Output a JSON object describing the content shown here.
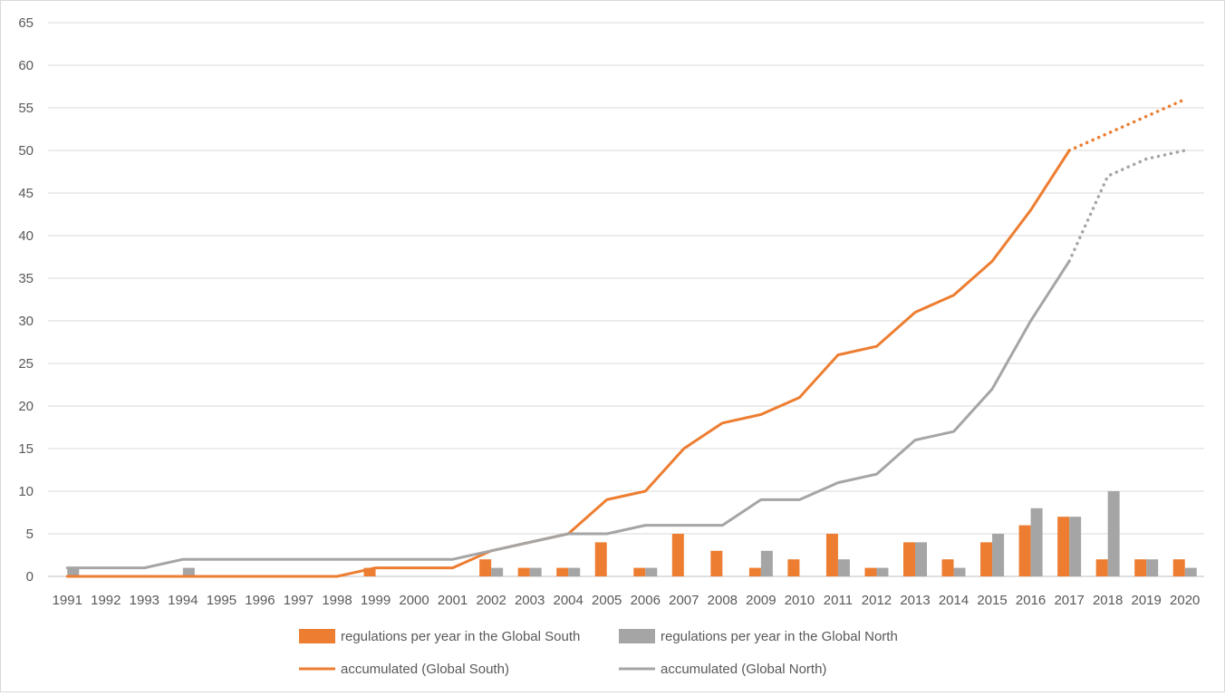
{
  "chart_data": {
    "type": "bar",
    "categories": [
      "1991",
      "1992",
      "1993",
      "1994",
      "1995",
      "1996",
      "1997",
      "1998",
      "1999",
      "2000",
      "2001",
      "2002",
      "2003",
      "2004",
      "2005",
      "2006",
      "2007",
      "2008",
      "2009",
      "2010",
      "2011",
      "2012",
      "2013",
      "2014",
      "2015",
      "2016",
      "2017",
      "2018",
      "2019",
      "2020"
    ],
    "ylim": [
      0,
      65
    ],
    "yticks": [
      0,
      5,
      10,
      15,
      20,
      25,
      30,
      35,
      40,
      45,
      50,
      55,
      60,
      65
    ],
    "grid": true,
    "legend_position": "bottom",
    "series": [
      {
        "name": "regulations per year in the Global South",
        "kind": "bar",
        "color": "#ED7D31",
        "values": [
          0,
          0,
          0,
          0,
          0,
          0,
          0,
          0,
          1,
          0,
          0,
          2,
          1,
          1,
          4,
          1,
          5,
          3,
          1,
          2,
          5,
          1,
          4,
          2,
          4,
          6,
          7,
          2,
          2,
          2
        ]
      },
      {
        "name": "regulations per year in the Global North",
        "kind": "bar",
        "color": "#A5A5A5",
        "values": [
          1,
          0,
          0,
          1,
          0,
          0,
          0,
          0,
          0,
          0,
          0,
          1,
          1,
          1,
          0,
          1,
          0,
          0,
          3,
          0,
          2,
          1,
          4,
          1,
          5,
          8,
          7,
          10,
          2,
          1
        ]
      },
      {
        "name": "accumulated (Global South)",
        "kind": "line",
        "color": "#ED7D31",
        "values": [
          0,
          0,
          0,
          0,
          0,
          0,
          0,
          0,
          1,
          1,
          1,
          3,
          4,
          5,
          9,
          10,
          15,
          18,
          19,
          21,
          26,
          27,
          31,
          33,
          37,
          43,
          50,
          52,
          54,
          56
        ],
        "dotted_from_index": 26
      },
      {
        "name": "accumulated (Global North)",
        "kind": "line",
        "color": "#A5A5A5",
        "values": [
          1,
          1,
          1,
          2,
          2,
          2,
          2,
          2,
          2,
          2,
          2,
          3,
          4,
          5,
          5,
          6,
          6,
          6,
          9,
          9,
          11,
          12,
          16,
          17,
          22,
          30,
          37,
          47,
          49,
          50
        ],
        "dotted_from_index": 26
      }
    ]
  }
}
